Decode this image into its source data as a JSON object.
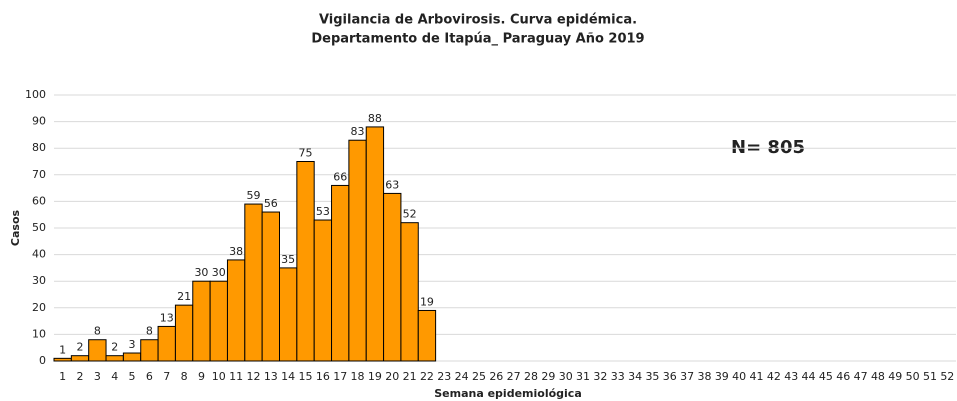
{
  "chart_data": {
    "type": "bar",
    "title": "Vigilancia de Arbovirosis. Curva epidémica.",
    "subtitle": "Departamento de Itapúa_ Paraguay Año 2019",
    "x_label": "Semana epidemiológica",
    "y_label": "Casos",
    "annotation": "N= 805",
    "categories": [
      "1",
      "2",
      "3",
      "4",
      "5",
      "6",
      "7",
      "8",
      "9",
      "10",
      "11",
      "12",
      "13",
      "14",
      "15",
      "16",
      "17",
      "18",
      "19",
      "20",
      "21",
      "22",
      "23",
      "24",
      "25",
      "26",
      "27",
      "28",
      "29",
      "30",
      "31",
      "32",
      "33",
      "34",
      "35",
      "36",
      "37",
      "38",
      "39",
      "40",
      "41",
      "42",
      "43",
      "44",
      "45",
      "46",
      "47",
      "48",
      "49",
      "50",
      "51",
      "52"
    ],
    "values": [
      1,
      2,
      8,
      2,
      3,
      8,
      13,
      21,
      30,
      30,
      38,
      59,
      56,
      35,
      75,
      53,
      66,
      83,
      88,
      63,
      52,
      19,
      null,
      null,
      null,
      null,
      null,
      null,
      null,
      null,
      null,
      null,
      null,
      null,
      null,
      null,
      null,
      null,
      null,
      null,
      null,
      null,
      null,
      null,
      null,
      null,
      null,
      null,
      null,
      null,
      null,
      null
    ],
    "color": "#ff9900",
    "ylim": [
      0,
      100
    ],
    "yticks": [
      0,
      10,
      20,
      30,
      40,
      50,
      60,
      70,
      80,
      90,
      100
    ],
    "grid": true
  }
}
